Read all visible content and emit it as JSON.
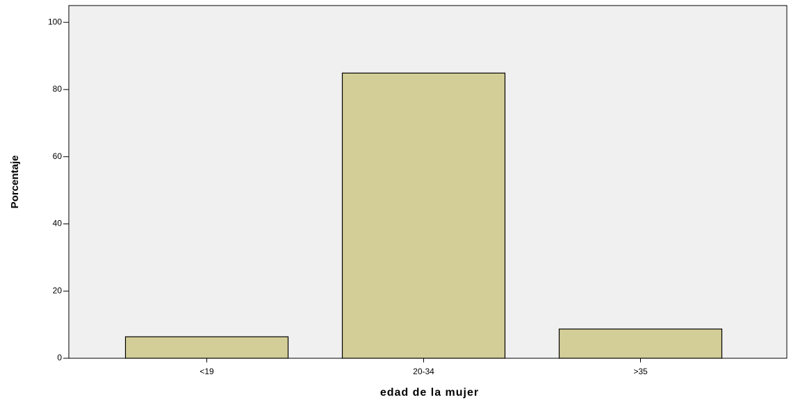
{
  "chart_data": {
    "type": "bar",
    "x_label": "edad de la mujer",
    "y_label": "Porcentaje",
    "categories": [
      "<19",
      "20-34",
      ">35"
    ],
    "values": [
      6.4,
      84.9,
      8.7
    ],
    "color": "#d3ce97",
    "ylim": [
      0,
      105
    ],
    "yticks": [
      0,
      20,
      40,
      60,
      80,
      100
    ],
    "grid": false
  }
}
